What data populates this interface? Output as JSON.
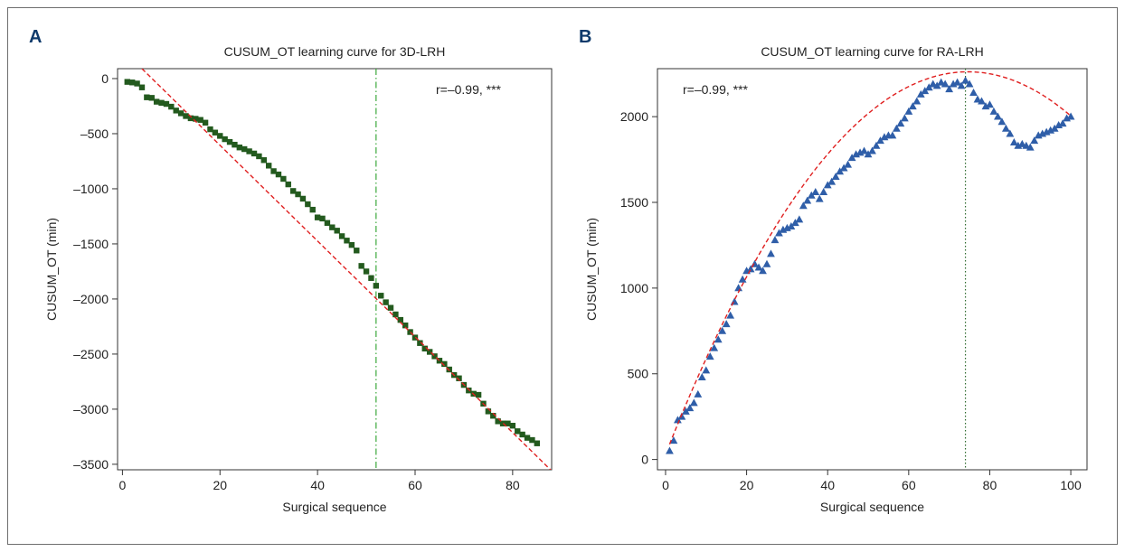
{
  "figure": {
    "panel_letters": [
      "A",
      "B"
    ]
  },
  "chart_data": [
    {
      "type": "scatter",
      "panel": "A",
      "title": "CUSUM_OT learning curve for 3D-LRH",
      "xlabel": "Surgical sequence",
      "ylabel": "CUSUM_OT (min)",
      "annotation": "r=–0.99, ***",
      "xlim": [
        -1,
        88
      ],
      "ylim": [
        -3550,
        90
      ],
      "xticks": [
        0,
        20,
        40,
        60,
        80
      ],
      "xtick_labels": [
        "0",
        "20",
        "40",
        "60",
        "80"
      ],
      "yticks": [
        0,
        -500,
        -1000,
        -1500,
        -2000,
        -2500,
        -3000,
        -3500
      ],
      "ytick_labels": [
        "0",
        "–500",
        "–1000",
        "–1500",
        "–2000",
        "–2500",
        "–3000",
        "–3500"
      ],
      "grid": false,
      "marker_color": "#235a1e",
      "marker": "square",
      "vline": {
        "x": 52,
        "color": "#3aa83a",
        "style": "dash-dot"
      },
      "fit": {
        "kind": "linear",
        "color": "#e02020",
        "style": "dashed",
        "x": [
          4,
          88
        ],
        "y": [
          90,
          -3560
        ]
      },
      "x": [
        1,
        2,
        3,
        4,
        5,
        6,
        7,
        8,
        9,
        10,
        11,
        12,
        13,
        14,
        15,
        16,
        17,
        18,
        19,
        20,
        21,
        22,
        23,
        24,
        25,
        26,
        27,
        28,
        29,
        30,
        31,
        32,
        33,
        34,
        35,
        36,
        37,
        38,
        39,
        40,
        41,
        42,
        43,
        44,
        45,
        46,
        47,
        48,
        49,
        50,
        51,
        52,
        53,
        54,
        55,
        56,
        57,
        58,
        59,
        60,
        61,
        62,
        63,
        64,
        65,
        66,
        67,
        68,
        69,
        70,
        71,
        72,
        73,
        74,
        75,
        76,
        77,
        78,
        79,
        80,
        81,
        82,
        83,
        84,
        85
      ],
      "y": [
        -30,
        -35,
        -45,
        -80,
        -170,
        -175,
        -210,
        -220,
        -230,
        -255,
        -290,
        -315,
        -340,
        -360,
        -365,
        -375,
        -400,
        -460,
        -490,
        -520,
        -550,
        -575,
        -600,
        -625,
        -640,
        -660,
        -680,
        -705,
        -740,
        -790,
        -840,
        -870,
        -910,
        -960,
        -1020,
        -1050,
        -1090,
        -1140,
        -1190,
        -1260,
        -1270,
        -1310,
        -1350,
        -1380,
        -1430,
        -1470,
        -1510,
        -1560,
        -1700,
        -1750,
        -1810,
        -1880,
        -1970,
        -2030,
        -2080,
        -2140,
        -2190,
        -2240,
        -2300,
        -2350,
        -2400,
        -2450,
        -2480,
        -2520,
        -2560,
        -2590,
        -2640,
        -2690,
        -2720,
        -2780,
        -2830,
        -2860,
        -2870,
        -2950,
        -3020,
        -3060,
        -3110,
        -3130,
        -3130,
        -3150,
        -3200,
        -3230,
        -3260,
        -3280,
        -3310
      ]
    },
    {
      "type": "scatter",
      "panel": "B",
      "title": "CUSUM_OT learning curve for RA-LRH",
      "xlabel": "Surgical sequence",
      "ylabel": "CUSUM_OT (min)",
      "annotation": "r=–0.99, ***",
      "xlim": [
        -2,
        104
      ],
      "ylim": [
        -60,
        2280
      ],
      "xticks": [
        0,
        20,
        40,
        60,
        80,
        100
      ],
      "xtick_labels": [
        "0",
        "20",
        "40",
        "60",
        "80",
        "100"
      ],
      "yticks": [
        0,
        500,
        1000,
        1500,
        2000
      ],
      "ytick_labels": [
        "0",
        "500",
        "1000",
        "1500",
        "2000"
      ],
      "grid": false,
      "marker_color": "#2f5ea8",
      "marker": "triangle",
      "vline": {
        "x": 74,
        "color": "#2d6a2d",
        "style": "dotted"
      },
      "fit": {
        "kind": "quadratic",
        "color": "#e02020",
        "style": "dashed",
        "x_range": [
          1,
          100
        ],
        "a": -0.4006,
        "b": 59.8,
        "c": 30
      },
      "x": [
        1,
        2,
        3,
        4,
        5,
        6,
        7,
        8,
        9,
        10,
        11,
        12,
        13,
        14,
        15,
        16,
        17,
        18,
        19,
        20,
        21,
        22,
        23,
        24,
        25,
        26,
        27,
        28,
        29,
        30,
        31,
        32,
        33,
        34,
        35,
        36,
        37,
        38,
        39,
        40,
        41,
        42,
        43,
        44,
        45,
        46,
        47,
        48,
        49,
        50,
        51,
        52,
        53,
        54,
        55,
        56,
        57,
        58,
        59,
        60,
        61,
        62,
        63,
        64,
        65,
        66,
        67,
        68,
        69,
        70,
        71,
        72,
        73,
        74,
        75,
        76,
        77,
        78,
        79,
        80,
        81,
        82,
        83,
        84,
        85,
        86,
        87,
        88,
        89,
        90,
        91,
        92,
        93,
        94,
        95,
        96,
        97,
        98,
        99,
        100
      ],
      "y": [
        50,
        110,
        230,
        250,
        280,
        300,
        330,
        380,
        480,
        520,
        600,
        650,
        700,
        750,
        790,
        840,
        920,
        1000,
        1050,
        1100,
        1110,
        1140,
        1120,
        1100,
        1140,
        1200,
        1280,
        1320,
        1340,
        1350,
        1360,
        1380,
        1400,
        1480,
        1510,
        1540,
        1560,
        1520,
        1560,
        1600,
        1620,
        1650,
        1680,
        1700,
        1720,
        1760,
        1780,
        1790,
        1800,
        1780,
        1800,
        1830,
        1860,
        1880,
        1890,
        1890,
        1930,
        1960,
        1990,
        2030,
        2060,
        2090,
        2130,
        2150,
        2170,
        2190,
        2180,
        2200,
        2190,
        2160,
        2190,
        2200,
        2180,
        2210,
        2190,
        2140,
        2100,
        2090,
        2060,
        2070,
        2030,
        2000,
        1970,
        1930,
        1900,
        1850,
        1830,
        1840,
        1830,
        1820,
        1860,
        1890,
        1900,
        1910,
        1920,
        1930,
        1950,
        1960,
        1990,
        2000
      ]
    }
  ]
}
